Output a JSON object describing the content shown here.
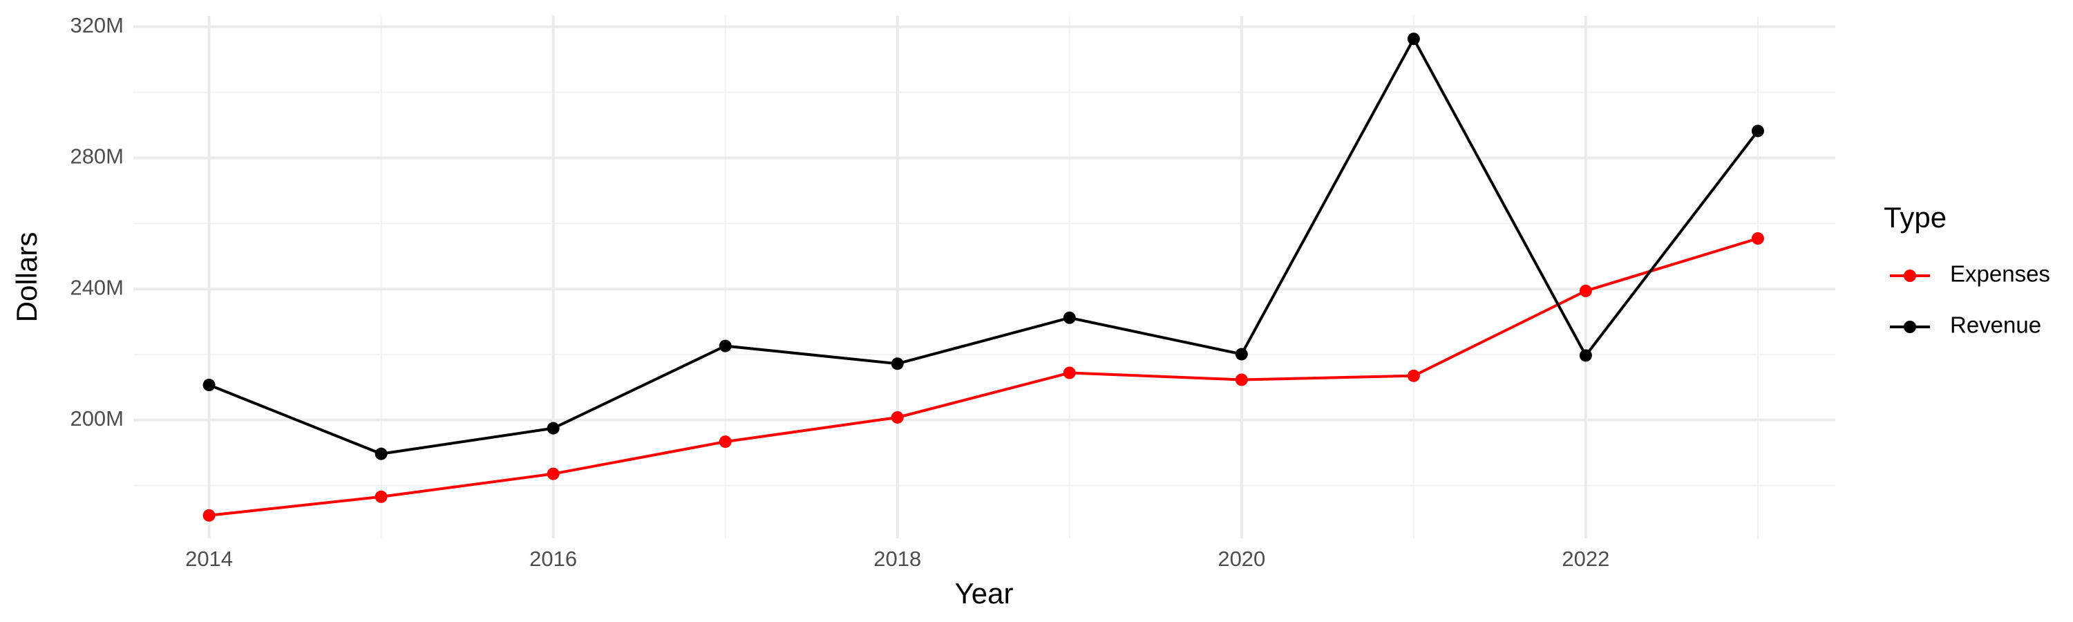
{
  "chart_data": {
    "type": "line",
    "x_label": "Year",
    "y_label": "Dollars",
    "legend_title": "Type",
    "x": [
      2014,
      2015,
      2016,
      2017,
      2018,
      2019,
      2020,
      2021,
      2022,
      2023
    ],
    "series": [
      {
        "name": "Expenses",
        "color": "#ff0000",
        "values": [
          170900000,
          176600000,
          183600000,
          193400000,
          200800000,
          214400000,
          212300000,
          213500000,
          239400000,
          255400000
        ]
      },
      {
        "name": "Revenue",
        "color": "#000000",
        "values": [
          210700000,
          189700000,
          197500000,
          222600000,
          217200000,
          231200000,
          220100000,
          316300000,
          219700000,
          288200000
        ]
      }
    ],
    "xlim": [
      2013.56,
      2023.45
    ],
    "ylim": [
      163900000,
      323300000
    ],
    "xticks": [
      2014,
      2016,
      2018,
      2020,
      2022
    ],
    "yticks": [
      {
        "value": 200000000,
        "label": "200M"
      },
      {
        "value": 240000000,
        "label": "240M"
      },
      {
        "value": 280000000,
        "label": "280M"
      },
      {
        "value": 320000000,
        "label": "320M"
      }
    ],
    "grid": true,
    "legend": "right"
  }
}
